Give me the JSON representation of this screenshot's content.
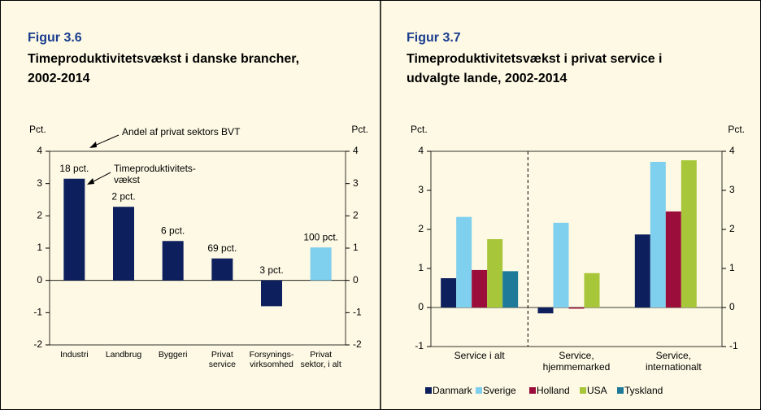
{
  "chart_data": [
    {
      "type": "bar",
      "figure": "Figur 3.6",
      "title": [
        "Timeproduktivitetsvækst i danske brancher,",
        "2002-2014"
      ],
      "ylabel": "Pct.",
      "y2label": "Pct.",
      "categories": [
        "Industri",
        "Landbrug",
        "Byggeri",
        "Privat\nservice",
        "Forsynings-\nvirksomhed",
        "Privat\nsektor, i alt"
      ],
      "values": [
        3.15,
        2.28,
        1.22,
        0.68,
        -0.8,
        1.02
      ],
      "colors": [
        "#0d1f5c",
        "#0d1f5c",
        "#0d1f5c",
        "#0d1f5c",
        "#0d1f5c",
        "#7fcfee"
      ],
      "bar_annotations": [
        "18 pct.",
        "2 pct.",
        "6 pct.",
        "69 pct.",
        "3 pct.",
        "100 pct."
      ],
      "annotations": [
        "Andel af privat sektors BVT",
        "Timeproduktivitets-\nvækst"
      ],
      "ylim": [
        -2,
        4
      ],
      "yticks": [
        -2,
        -1,
        0,
        1,
        2,
        3,
        4
      ]
    },
    {
      "type": "grouped_bar",
      "figure": "Figur 3.7",
      "title": [
        "Timeproduktivitetsvækst i privat service i",
        "udvalgte lande, 2002-2014"
      ],
      "ylabel": "Pct.",
      "y2label": "Pct.",
      "categories": [
        "Service i alt",
        "Service,\nhjemmemarked",
        "Service,\ninternationalt"
      ],
      "series": [
        {
          "name": "Danmark",
          "color": "#0d1f5c",
          "values": [
            0.75,
            -0.15,
            1.87
          ]
        },
        {
          "name": "Sverige",
          "color": "#7fcfee",
          "values": [
            2.32,
            2.17,
            3.73
          ]
        },
        {
          "name": "Holland",
          "color": "#9b0d3a",
          "values": [
            0.96,
            -0.03,
            2.46
          ]
        },
        {
          "name": "USA",
          "color": "#a8c63a",
          "values": [
            1.75,
            0.88,
            3.77
          ]
        },
        {
          "name": "Tyskland",
          "color": "#1f7a9a",
          "values": [
            0.93,
            null,
            null
          ]
        }
      ],
      "ylim": [
        -1,
        4
      ],
      "yticks": [
        -1,
        0,
        1,
        2,
        3,
        4
      ]
    }
  ]
}
